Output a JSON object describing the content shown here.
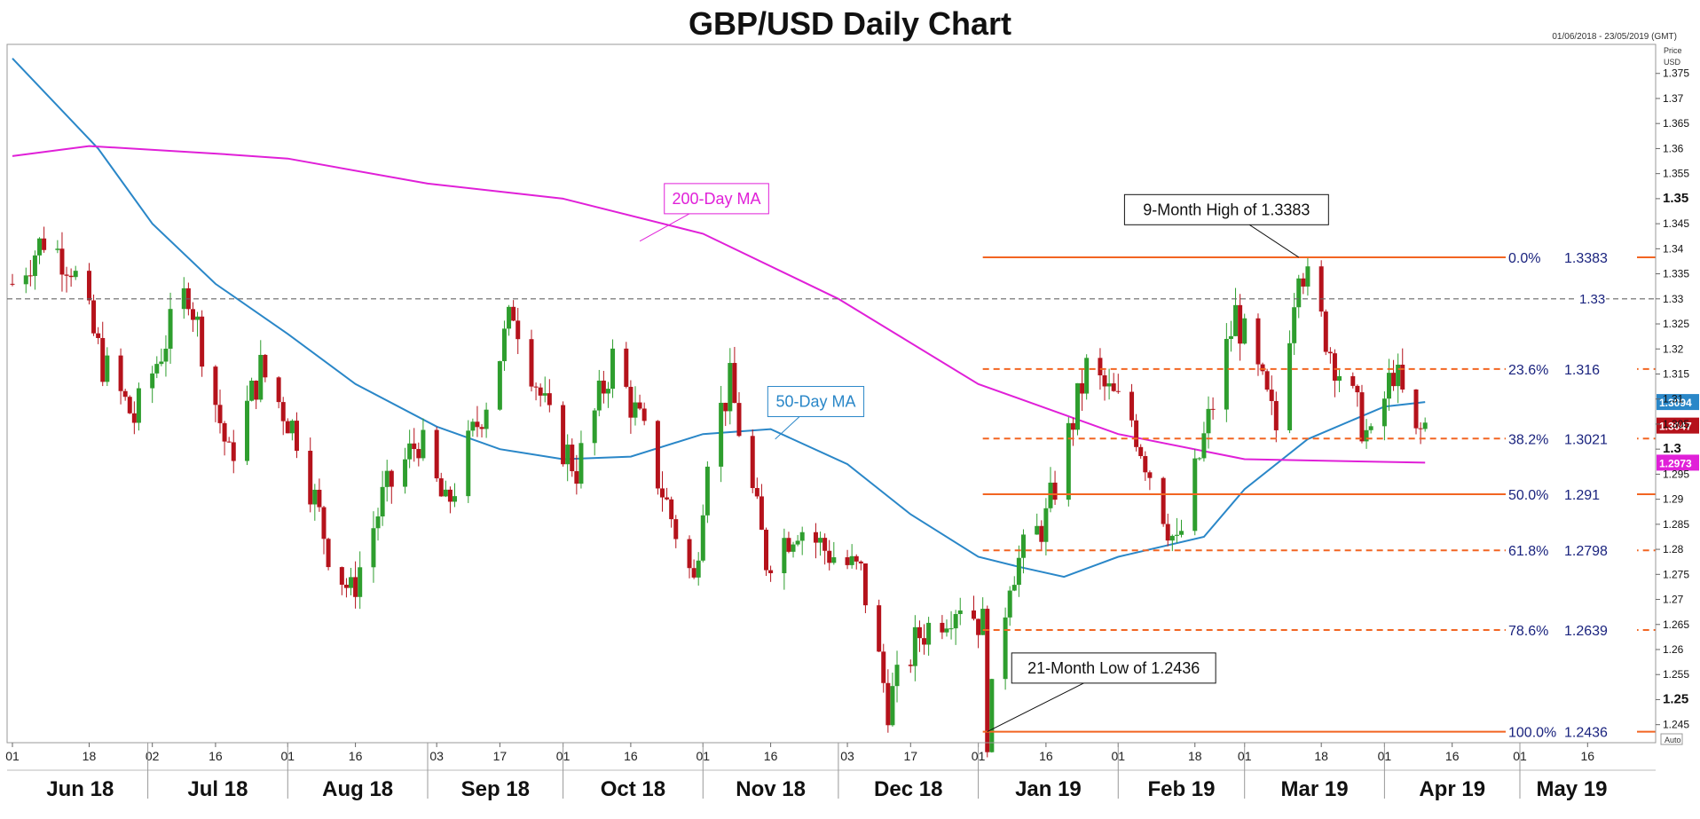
{
  "title": "GBP/USD Daily Chart",
  "date_range": "01/06/2018 - 23/05/2019 (GMT)",
  "axis_caption": {
    "line1": "Price",
    "line2": "USD"
  },
  "auto_label": "Auto",
  "colors": {
    "up": "#2e9e2e",
    "down": "#b5121b",
    "ma50": "#2a87c8",
    "ma200": "#e020d8",
    "fib": "#f26522",
    "dashed_level": "#666666",
    "label_text": "#1a237e"
  },
  "chart_data": {
    "type": "candlestick",
    "title": "GBP/USD Daily Chart",
    "ylabel": "Price USD",
    "ylim": [
      1.2414,
      1.3808
    ],
    "y_ticks": [
      1.245,
      1.25,
      1.255,
      1.26,
      1.265,
      1.27,
      1.275,
      1.28,
      1.285,
      1.29,
      1.295,
      1.3,
      1.305,
      1.31,
      1.315,
      1.32,
      1.325,
      1.33,
      1.335,
      1.34,
      1.345,
      1.35,
      1.355,
      1.36,
      1.365,
      1.37,
      1.375
    ],
    "y_ticks_bold": [
      1.25,
      1.3,
      1.35
    ],
    "x_axis": {
      "day_ticks": [
        {
          "label": "01",
          "date": "2018-06-01"
        },
        {
          "label": "18",
          "date": "2018-06-18"
        },
        {
          "label": "02",
          "date": "2018-07-02"
        },
        {
          "label": "16",
          "date": "2018-07-16"
        },
        {
          "label": "01",
          "date": "2018-08-01"
        },
        {
          "label": "16",
          "date": "2018-08-16"
        },
        {
          "label": "03",
          "date": "2018-09-03"
        },
        {
          "label": "17",
          "date": "2018-09-17"
        },
        {
          "label": "01",
          "date": "2018-10-01"
        },
        {
          "label": "16",
          "date": "2018-10-16"
        },
        {
          "label": "01",
          "date": "2018-11-01"
        },
        {
          "label": "16",
          "date": "2018-11-16"
        },
        {
          "label": "03",
          "date": "2018-12-03"
        },
        {
          "label": "17",
          "date": "2018-12-17"
        },
        {
          "label": "01",
          "date": "2019-01-01"
        },
        {
          "label": "16",
          "date": "2019-01-16"
        },
        {
          "label": "01",
          "date": "2019-02-01"
        },
        {
          "label": "18",
          "date": "2019-02-18"
        },
        {
          "label": "01",
          "date": "2019-03-01"
        },
        {
          "label": "18",
          "date": "2019-03-18"
        },
        {
          "label": "01",
          "date": "2019-04-01"
        },
        {
          "label": "16",
          "date": "2019-04-16"
        },
        {
          "label": "01",
          "date": "2019-05-01"
        },
        {
          "label": "16",
          "date": "2019-05-16"
        }
      ],
      "months": [
        {
          "label": "Jun 18",
          "start": "2018-06-01",
          "end": "2018-07-01"
        },
        {
          "label": "Jul 18",
          "start": "2018-07-01",
          "end": "2018-08-01"
        },
        {
          "label": "Aug 18",
          "start": "2018-08-01",
          "end": "2018-09-01"
        },
        {
          "label": "Sep 18",
          "start": "2018-09-01",
          "end": "2018-10-01"
        },
        {
          "label": "Oct 18",
          "start": "2018-10-01",
          "end": "2018-11-01"
        },
        {
          "label": "Nov 18",
          "start": "2018-11-01",
          "end": "2018-12-01"
        },
        {
          "label": "Dec 18",
          "start": "2018-12-01",
          "end": "2019-01-01"
        },
        {
          "label": "Jan 19",
          "start": "2019-01-01",
          "end": "2019-02-01"
        },
        {
          "label": "Feb 19",
          "start": "2019-02-01",
          "end": "2019-03-01"
        },
        {
          "label": "Mar 19",
          "start": "2019-03-01",
          "end": "2019-04-01"
        },
        {
          "label": "Apr 19",
          "start": "2019-04-01",
          "end": "2019-05-01"
        },
        {
          "label": "May 19",
          "start": "2019-05-01",
          "end": "2019-05-24"
        }
      ]
    },
    "price_path": [
      {
        "date": "2018-06-01",
        "price": 1.333
      },
      {
        "date": "2018-06-08",
        "price": 1.342
      },
      {
        "date": "2018-06-14",
        "price": 1.337
      },
      {
        "date": "2018-06-21",
        "price": 1.317
      },
      {
        "date": "2018-06-28",
        "price": 1.306
      },
      {
        "date": "2018-07-05",
        "price": 1.322
      },
      {
        "date": "2018-07-10",
        "price": 1.332
      },
      {
        "date": "2018-07-19",
        "price": 1.298
      },
      {
        "date": "2018-07-26",
        "price": 1.316
      },
      {
        "date": "2018-08-03",
        "price": 1.303
      },
      {
        "date": "2018-08-10",
        "price": 1.28
      },
      {
        "date": "2018-08-15",
        "price": 1.271
      },
      {
        "date": "2018-08-22",
        "price": 1.29
      },
      {
        "date": "2018-08-30",
        "price": 1.302
      },
      {
        "date": "2018-09-05",
        "price": 1.288
      },
      {
        "date": "2018-09-14",
        "price": 1.31
      },
      {
        "date": "2018-09-20",
        "price": 1.328
      },
      {
        "date": "2018-09-28",
        "price": 1.305
      },
      {
        "date": "2018-10-04",
        "price": 1.296
      },
      {
        "date": "2018-10-12",
        "price": 1.318
      },
      {
        "date": "2018-10-18",
        "price": 1.305
      },
      {
        "date": "2018-10-30",
        "price": 1.273
      },
      {
        "date": "2018-11-02",
        "price": 1.3
      },
      {
        "date": "2018-11-07",
        "price": 1.313
      },
      {
        "date": "2018-11-15",
        "price": 1.278
      },
      {
        "date": "2018-11-22",
        "price": 1.285
      },
      {
        "date": "2018-11-28",
        "price": 1.28
      },
      {
        "date": "2018-12-06",
        "price": 1.275
      },
      {
        "date": "2018-12-12",
        "price": 1.249
      },
      {
        "date": "2018-12-19",
        "price": 1.263
      },
      {
        "date": "2018-12-28",
        "price": 1.27
      },
      {
        "date": "2019-01-02",
        "price": 1.265
      },
      {
        "date": "2019-01-03",
        "price": 1.2436
      },
      {
        "date": "2019-01-08",
        "price": 1.275
      },
      {
        "date": "2019-01-16",
        "price": 1.286
      },
      {
        "date": "2019-01-25",
        "price": 1.316
      },
      {
        "date": "2019-02-04",
        "price": 1.306
      },
      {
        "date": "2019-02-14",
        "price": 1.28
      },
      {
        "date": "2019-02-20",
        "price": 1.302
      },
      {
        "date": "2019-02-27",
        "price": 1.327
      },
      {
        "date": "2019-03-05",
        "price": 1.312
      },
      {
        "date": "2019-03-08",
        "price": 1.304
      },
      {
        "date": "2019-03-13",
        "price": 1.3383
      },
      {
        "date": "2019-03-20",
        "price": 1.32
      },
      {
        "date": "2019-03-29",
        "price": 1.301
      },
      {
        "date": "2019-04-03",
        "price": 1.316
      },
      {
        "date": "2019-04-08",
        "price": 1.302
      },
      {
        "date": "2019-04-10",
        "price": 1.3047
      }
    ],
    "series": [
      {
        "name": "50-Day MA",
        "points": [
          {
            "date": "2018-06-01",
            "value": 1.378
          },
          {
            "date": "2018-06-20",
            "value": 1.36
          },
          {
            "date": "2018-07-02",
            "value": 1.345
          },
          {
            "date": "2018-07-16",
            "value": 1.333
          },
          {
            "date": "2018-08-01",
            "value": 1.323
          },
          {
            "date": "2018-08-16",
            "value": 1.313
          },
          {
            "date": "2018-09-03",
            "value": 1.3045
          },
          {
            "date": "2018-09-17",
            "value": 1.3
          },
          {
            "date": "2018-10-01",
            "value": 1.298
          },
          {
            "date": "2018-10-16",
            "value": 1.2985
          },
          {
            "date": "2018-11-01",
            "value": 1.303
          },
          {
            "date": "2018-11-16",
            "value": 1.304
          },
          {
            "date": "2018-12-03",
            "value": 1.297
          },
          {
            "date": "2018-12-17",
            "value": 1.287
          },
          {
            "date": "2019-01-01",
            "value": 1.2785
          },
          {
            "date": "2019-01-10",
            "value": 1.2765
          },
          {
            "date": "2019-01-20",
            "value": 1.2745
          },
          {
            "date": "2019-02-01",
            "value": 1.2785
          },
          {
            "date": "2019-02-20",
            "value": 1.2825
          },
          {
            "date": "2019-03-01",
            "value": 1.292
          },
          {
            "date": "2019-03-15",
            "value": 1.302
          },
          {
            "date": "2019-04-01",
            "value": 1.3085
          },
          {
            "date": "2019-04-10",
            "value": 1.3094
          }
        ]
      },
      {
        "name": "200-Day MA",
        "points": [
          {
            "date": "2018-06-01",
            "value": 1.3585
          },
          {
            "date": "2018-06-18",
            "value": 1.3605
          },
          {
            "date": "2018-07-16",
            "value": 1.359
          },
          {
            "date": "2018-08-01",
            "value": 1.358
          },
          {
            "date": "2018-09-01",
            "value": 1.353
          },
          {
            "date": "2018-10-01",
            "value": 1.35
          },
          {
            "date": "2018-11-01",
            "value": 1.343
          },
          {
            "date": "2018-12-01",
            "value": 1.33
          },
          {
            "date": "2019-01-01",
            "value": 1.313
          },
          {
            "date": "2019-02-01",
            "value": 1.303
          },
          {
            "date": "2019-03-01",
            "value": 1.298
          },
          {
            "date": "2019-04-10",
            "value": 1.2973
          }
        ]
      }
    ],
    "fib_levels": [
      {
        "pct": "0.0%",
        "value": 1.3383,
        "style": "solid"
      },
      {
        "pct": "23.6%",
        "value": 1.316,
        "style": "dashed"
      },
      {
        "pct": "38.2%",
        "value": 1.3021,
        "style": "dashed"
      },
      {
        "pct": "50.0%",
        "value": 1.291,
        "style": "solid"
      },
      {
        "pct": "61.8%",
        "value": 1.2798,
        "style": "dashed"
      },
      {
        "pct": "78.6%",
        "value": 1.2639,
        "style": "dashed"
      },
      {
        "pct": "100.0%",
        "value": 1.2436,
        "style": "solid"
      }
    ],
    "fib_start_date": "2019-01-02",
    "horizontal_level": {
      "value": 1.33,
      "label": "1.33"
    },
    "price_badges": [
      {
        "value": 1.3094,
        "label": "1.3094",
        "color": "#2a87c8"
      },
      {
        "value": 1.3047,
        "label": "1.3047",
        "color": "#b5121b"
      },
      {
        "value": 1.2973,
        "label": "1.2973",
        "color": "#e020d8"
      }
    ],
    "annotations": [
      {
        "text": "200-Day MA",
        "color": "#e020d8",
        "date": "2018-11-04",
        "value": 1.35,
        "target_date": "2018-10-18",
        "target_value": 1.3415
      },
      {
        "text": "50-Day MA",
        "color": "#2a87c8",
        "date": "2018-11-26",
        "value": 1.3095,
        "target_date": "2018-11-17",
        "target_value": 1.302
      },
      {
        "text": "9-Month High of 1.3383",
        "color": "#111111",
        "date": "2019-02-25",
        "value": 1.3478,
        "target_date": "2019-03-13",
        "target_value": 1.3383
      },
      {
        "text": "21-Month Low of 1.2436",
        "color": "#111111",
        "date": "2019-01-31",
        "value": 1.2563,
        "target_date": "2019-01-03",
        "target_value": 1.2436
      }
    ]
  }
}
